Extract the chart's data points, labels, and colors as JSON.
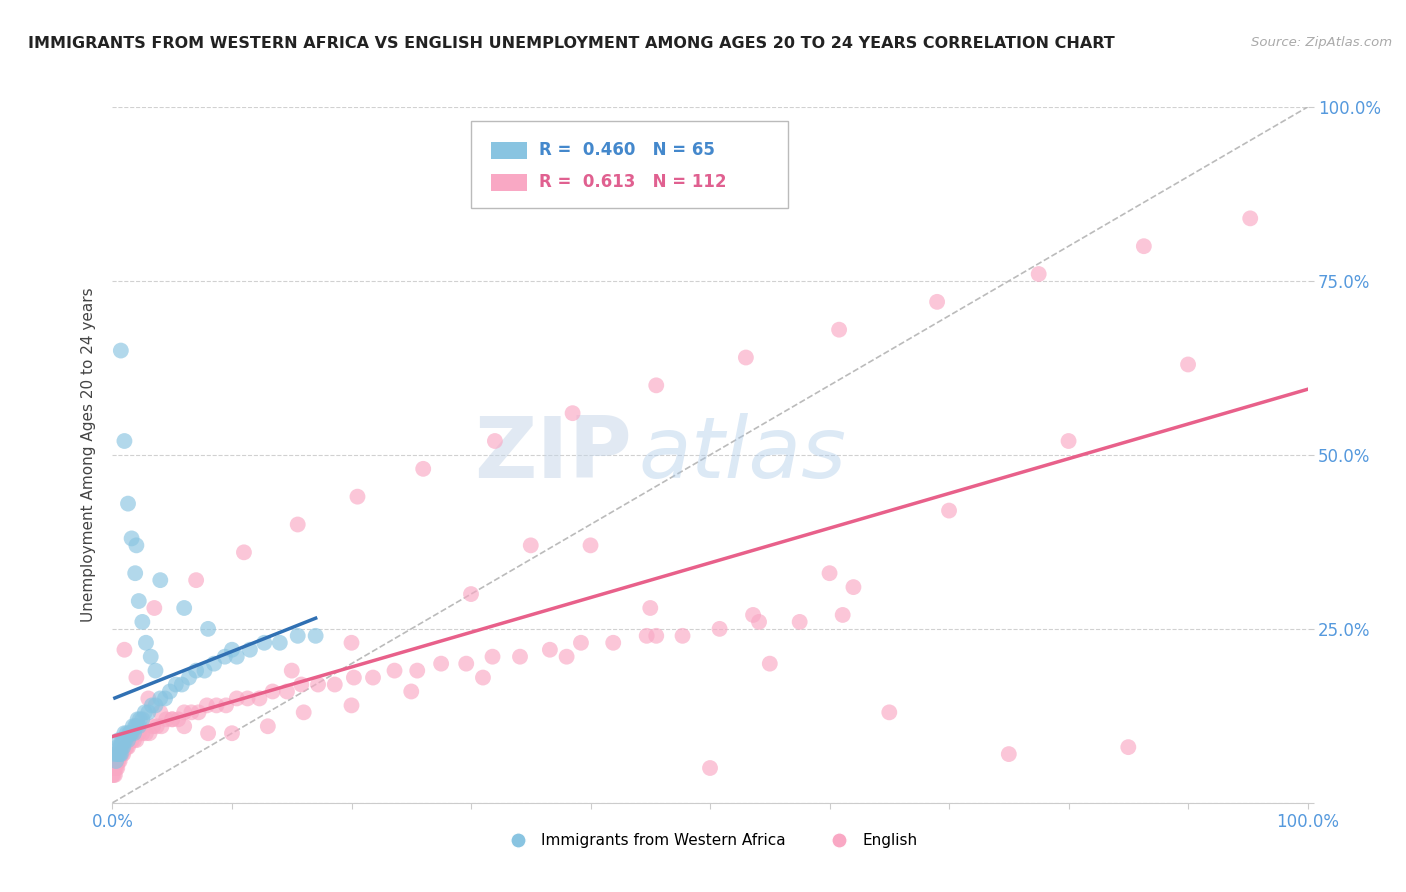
{
  "title": "IMMIGRANTS FROM WESTERN AFRICA VS ENGLISH UNEMPLOYMENT AMONG AGES 20 TO 24 YEARS CORRELATION CHART",
  "source": "Source: ZipAtlas.com",
  "ylabel": "Unemployment Among Ages 20 to 24 years",
  "xlim": [
    0,
    1
  ],
  "ylim": [
    0,
    1
  ],
  "yticks": [
    0.0,
    0.25,
    0.5,
    0.75,
    1.0
  ],
  "ytick_labels": [
    "",
    "25.0%",
    "50.0%",
    "75.0%",
    "100.0%"
  ],
  "legend_labels": [
    "Immigrants from Western Africa",
    "English"
  ],
  "r_blue": 0.46,
  "n_blue": 65,
  "r_pink": 0.613,
  "n_pink": 112,
  "color_blue": "#89c4e1",
  "color_pink": "#f9a8c4",
  "color_blue_line": "#3070b3",
  "color_pink_line": "#e8608a",
  "color_diag_line": "#bbbbbb",
  "background_color": "#ffffff",
  "grid_color": "#cccccc",
  "watermark_zip": "ZIP",
  "watermark_atlas": "atlas",
  "blue_points_x": [
    0.002,
    0.003,
    0.004,
    0.004,
    0.005,
    0.005,
    0.006,
    0.006,
    0.007,
    0.007,
    0.008,
    0.008,
    0.009,
    0.009,
    0.01,
    0.01,
    0.011,
    0.012,
    0.013,
    0.014,
    0.015,
    0.016,
    0.017,
    0.018,
    0.019,
    0.02,
    0.021,
    0.022,
    0.023,
    0.025,
    0.027,
    0.03,
    0.033,
    0.036,
    0.04,
    0.044,
    0.048,
    0.053,
    0.058,
    0.064,
    0.07,
    0.077,
    0.085,
    0.094,
    0.104,
    0.115,
    0.127,
    0.14,
    0.155,
    0.17,
    0.007,
    0.01,
    0.013,
    0.016,
    0.019,
    0.022,
    0.025,
    0.028,
    0.032,
    0.036,
    0.02,
    0.04,
    0.06,
    0.08,
    0.1
  ],
  "blue_points_y": [
    0.07,
    0.06,
    0.07,
    0.08,
    0.07,
    0.09,
    0.07,
    0.08,
    0.07,
    0.08,
    0.08,
    0.09,
    0.08,
    0.09,
    0.09,
    0.1,
    0.09,
    0.1,
    0.09,
    0.1,
    0.1,
    0.1,
    0.11,
    0.1,
    0.11,
    0.11,
    0.12,
    0.11,
    0.12,
    0.12,
    0.13,
    0.13,
    0.14,
    0.14,
    0.15,
    0.15,
    0.16,
    0.17,
    0.17,
    0.18,
    0.19,
    0.19,
    0.2,
    0.21,
    0.21,
    0.22,
    0.23,
    0.23,
    0.24,
    0.24,
    0.65,
    0.52,
    0.43,
    0.38,
    0.33,
    0.29,
    0.26,
    0.23,
    0.21,
    0.19,
    0.37,
    0.32,
    0.28,
    0.25,
    0.22
  ],
  "pink_points_x": [
    0.0,
    0.001,
    0.001,
    0.002,
    0.002,
    0.003,
    0.003,
    0.004,
    0.004,
    0.005,
    0.005,
    0.006,
    0.006,
    0.007,
    0.008,
    0.009,
    0.01,
    0.011,
    0.012,
    0.013,
    0.014,
    0.016,
    0.018,
    0.02,
    0.022,
    0.025,
    0.028,
    0.031,
    0.034,
    0.037,
    0.041,
    0.045,
    0.05,
    0.055,
    0.06,
    0.066,
    0.072,
    0.079,
    0.087,
    0.095,
    0.104,
    0.113,
    0.123,
    0.134,
    0.146,
    0.158,
    0.172,
    0.186,
    0.202,
    0.218,
    0.236,
    0.255,
    0.275,
    0.296,
    0.318,
    0.341,
    0.366,
    0.392,
    0.419,
    0.447,
    0.477,
    0.508,
    0.541,
    0.575,
    0.611,
    0.01,
    0.02,
    0.03,
    0.04,
    0.05,
    0.06,
    0.08,
    0.1,
    0.13,
    0.16,
    0.2,
    0.25,
    0.31,
    0.38,
    0.455,
    0.536,
    0.62,
    0.035,
    0.07,
    0.11,
    0.155,
    0.205,
    0.26,
    0.32,
    0.385,
    0.455,
    0.53,
    0.608,
    0.69,
    0.775,
    0.863,
    0.952,
    0.9,
    0.8,
    0.7,
    0.6,
    0.5,
    0.4,
    0.3,
    0.2,
    0.15,
    0.35,
    0.45,
    0.55,
    0.65,
    0.75,
    0.85
  ],
  "pink_points_y": [
    0.04,
    0.04,
    0.05,
    0.04,
    0.05,
    0.05,
    0.06,
    0.05,
    0.06,
    0.06,
    0.07,
    0.06,
    0.07,
    0.07,
    0.07,
    0.07,
    0.08,
    0.08,
    0.08,
    0.08,
    0.09,
    0.09,
    0.09,
    0.09,
    0.1,
    0.1,
    0.1,
    0.1,
    0.11,
    0.11,
    0.11,
    0.12,
    0.12,
    0.12,
    0.13,
    0.13,
    0.13,
    0.14,
    0.14,
    0.14,
    0.15,
    0.15,
    0.15,
    0.16,
    0.16,
    0.17,
    0.17,
    0.17,
    0.18,
    0.18,
    0.19,
    0.19,
    0.2,
    0.2,
    0.21,
    0.21,
    0.22,
    0.23,
    0.23,
    0.24,
    0.24,
    0.25,
    0.26,
    0.26,
    0.27,
    0.22,
    0.18,
    0.15,
    0.13,
    0.12,
    0.11,
    0.1,
    0.1,
    0.11,
    0.13,
    0.14,
    0.16,
    0.18,
    0.21,
    0.24,
    0.27,
    0.31,
    0.28,
    0.32,
    0.36,
    0.4,
    0.44,
    0.48,
    0.52,
    0.56,
    0.6,
    0.64,
    0.68,
    0.72,
    0.76,
    0.8,
    0.84,
    0.63,
    0.52,
    0.42,
    0.33,
    0.05,
    0.37,
    0.3,
    0.23,
    0.19,
    0.37,
    0.28,
    0.2,
    0.13,
    0.07,
    0.08
  ]
}
